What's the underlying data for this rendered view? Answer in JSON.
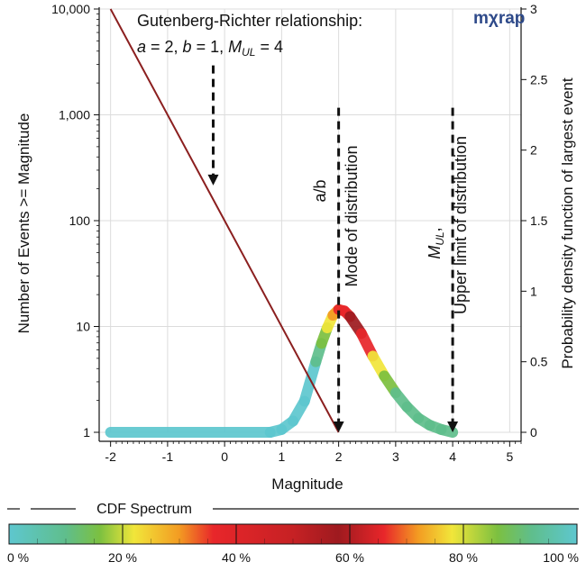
{
  "chart_data": {
    "type": "line",
    "logo": "mχrap",
    "annotation": {
      "line1": "Gutenberg-Richter relationship:",
      "line2": {
        "a_sym": "a",
        "a_val": " = 2, ",
        "b_sym": "b",
        "b_val": " = 1, ",
        "m_sym": "M",
        "m_sub": "UL",
        "m_val": " = 4"
      },
      "mode_lines": [
        "a/b",
        "Mode of distribution"
      ],
      "upper_lines": {
        "m_sym": "M",
        "m_sub": "UL",
        "m_suffix": ",",
        "text": "Upper limit of distribution"
      }
    },
    "xlabel": "Magnitude",
    "ylabel_left": "Number of Events >= Magnitude",
    "ylabel_right": "Probability density function of largest event",
    "x_ticks": [
      "-2",
      "-1",
      "0",
      "1",
      "2",
      "3",
      "4",
      "5"
    ],
    "xlim": [
      -2.2,
      5.2
    ],
    "y_left_ticks": [
      "1",
      "10",
      "100",
      "1,000",
      "10,000"
    ],
    "y_left_log_range": [
      1,
      10000
    ],
    "y_right_ticks": [
      "0",
      "0.5",
      "1",
      "1.5",
      "2",
      "2.5",
      "3"
    ],
    "y_right_range": [
      0,
      3
    ],
    "grid": true,
    "series": [
      {
        "role": "gutenberg-richter",
        "color": "#8b1f1f",
        "x": [
          -2,
          2
        ],
        "y": [
          10000,
          1
        ]
      },
      {
        "role": "pdf-largest-event",
        "x": [
          -2.0,
          0.8,
          1.0,
          1.2,
          1.4,
          1.6,
          1.7,
          1.8,
          1.9,
          2.0,
          2.1,
          2.2,
          2.4,
          2.6,
          2.8,
          3.0,
          3.2,
          3.4,
          3.6,
          3.8,
          4.0
        ],
        "y": [
          0.0,
          0.0,
          0.02,
          0.08,
          0.22,
          0.5,
          0.63,
          0.74,
          0.83,
          0.87,
          0.86,
          0.82,
          0.7,
          0.54,
          0.4,
          0.28,
          0.18,
          0.1,
          0.05,
          0.02,
          0.0
        ]
      }
    ],
    "arrows": [
      {
        "x": -0.2,
        "from_y": 2.6,
        "to_y": 1.75
      },
      {
        "x": 2.0,
        "from_y": 2.3,
        "to_y": 0.0
      },
      {
        "x": 4.0,
        "from_y": 2.3,
        "to_y": 0.0
      }
    ],
    "cdf": {
      "title": "CDF Spectrum",
      "ticks": [
        "0 %",
        "20 %",
        "40 %",
        "60 %",
        "80 %",
        "100 %"
      ],
      "stops": [
        {
          "at": 0.0,
          "color": "#5ec7cf"
        },
        {
          "at": 0.1,
          "color": "#5fbe8c"
        },
        {
          "at": 0.16,
          "color": "#7cc040"
        },
        {
          "at": 0.22,
          "color": "#f1e63a"
        },
        {
          "at": 0.3,
          "color": "#f39b22"
        },
        {
          "at": 0.36,
          "color": "#e8262a"
        },
        {
          "at": 0.5,
          "color": "#c62124"
        },
        {
          "at": 0.58,
          "color": "#9e1a1f"
        },
        {
          "at": 0.66,
          "color": "#e8262a"
        },
        {
          "at": 0.72,
          "color": "#f39b22"
        },
        {
          "at": 0.78,
          "color": "#f1e63a"
        },
        {
          "at": 0.86,
          "color": "#7cc040"
        },
        {
          "at": 0.92,
          "color": "#5fbe8c"
        },
        {
          "at": 1.0,
          "color": "#5ec7cf"
        }
      ]
    }
  }
}
